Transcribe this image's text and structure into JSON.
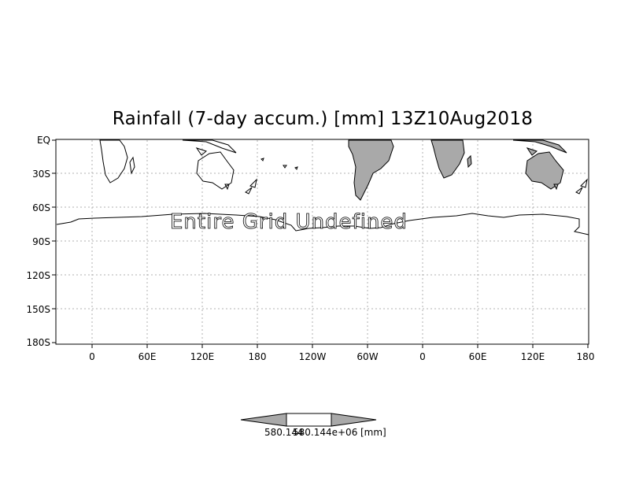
{
  "title": "Rainfall (7-day accum.) [mm] 13Z10Aug2018",
  "overlay_text": "Entire Grid Undefined",
  "y_ticks": [
    "EQ",
    "30S",
    "60S",
    "90S",
    "120S",
    "150S",
    "180S"
  ],
  "x_ticks": [
    "0",
    "60E",
    "120E",
    "180",
    "120W",
    "60W",
    "0",
    "60E",
    "120E",
    "180"
  ],
  "colorbar": {
    "left_label": "580.144",
    "right_label": "580.144e+06",
    "unit_label": "[mm]"
  },
  "colors": {
    "land_fill": "#a9a9a9",
    "grid": "#b0b0b0",
    "coast": "#000000"
  },
  "icons": [
    "coastline-outline",
    "colorbar-arrow-left",
    "colorbar-arrow-right"
  ]
}
